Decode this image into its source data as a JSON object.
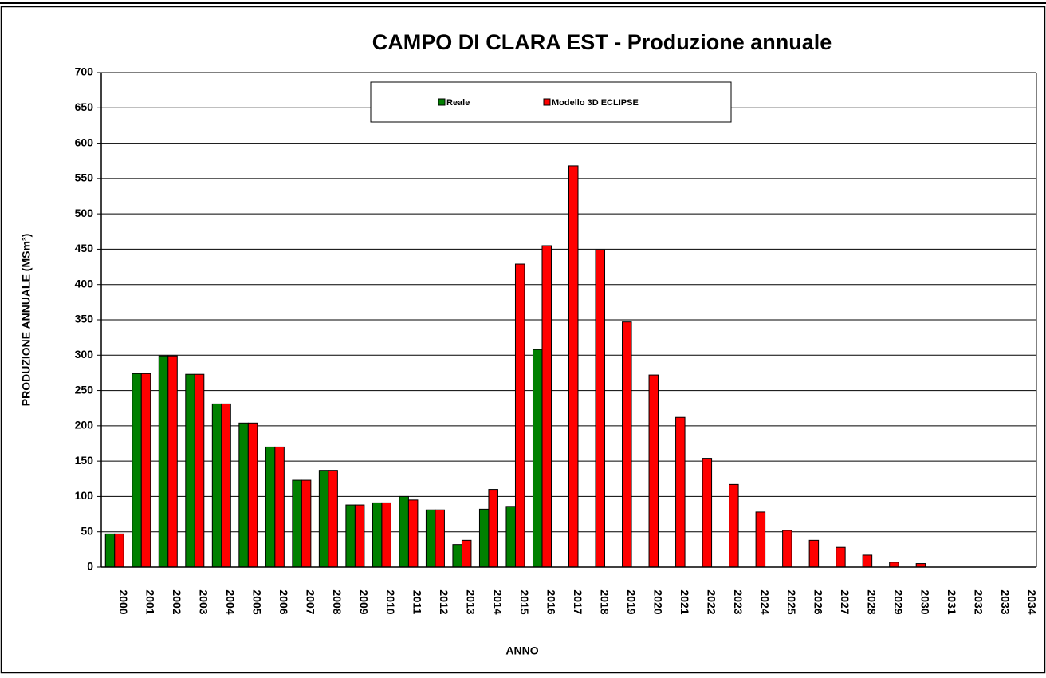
{
  "chart_data": {
    "type": "bar",
    "title": "CAMPO DI CLARA EST - Produzione annuale",
    "x_label": "ANNO",
    "y_label": "PRODUZIONE ANNUALE (MSm³)",
    "categories": [
      "2000",
      "2001",
      "2002",
      "2003",
      "2004",
      "2005",
      "2006",
      "2007",
      "2008",
      "2009",
      "2010",
      "2011",
      "2012",
      "2013",
      "2014",
      "2015",
      "2016",
      "2017",
      "2018",
      "2019",
      "2020",
      "2021",
      "2022",
      "2023",
      "2024",
      "2025",
      "2026",
      "2027",
      "2028",
      "2029",
      "2030",
      "2031",
      "2032",
      "2033",
      "2034"
    ],
    "series": [
      {
        "name": "Reale",
        "color": "#008000",
        "values": [
          47,
          274,
          299,
          273,
          231,
          204,
          170,
          123,
          137,
          88,
          91,
          100,
          81,
          32,
          82,
          86,
          308,
          null,
          null,
          null,
          null,
          null,
          null,
          null,
          null,
          null,
          null,
          null,
          null,
          null,
          null,
          null,
          null,
          null,
          null
        ]
      },
      {
        "name": "Modello 3D ECLIPSE",
        "color": "#ff0000",
        "values": [
          47,
          274,
          299,
          273,
          231,
          204,
          170,
          123,
          137,
          88,
          91,
          95,
          81,
          38,
          110,
          429,
          455,
          568,
          449,
          347,
          272,
          212,
          154,
          117,
          78,
          52,
          38,
          28,
          17,
          7,
          5,
          0,
          0,
          0,
          0
        ]
      }
    ],
    "ylim": [
      0,
      700
    ],
    "yticks": [
      0,
      50,
      100,
      150,
      200,
      250,
      300,
      350,
      400,
      450,
      500,
      550,
      600,
      650,
      700
    ],
    "grid": true,
    "legend": "top"
  }
}
